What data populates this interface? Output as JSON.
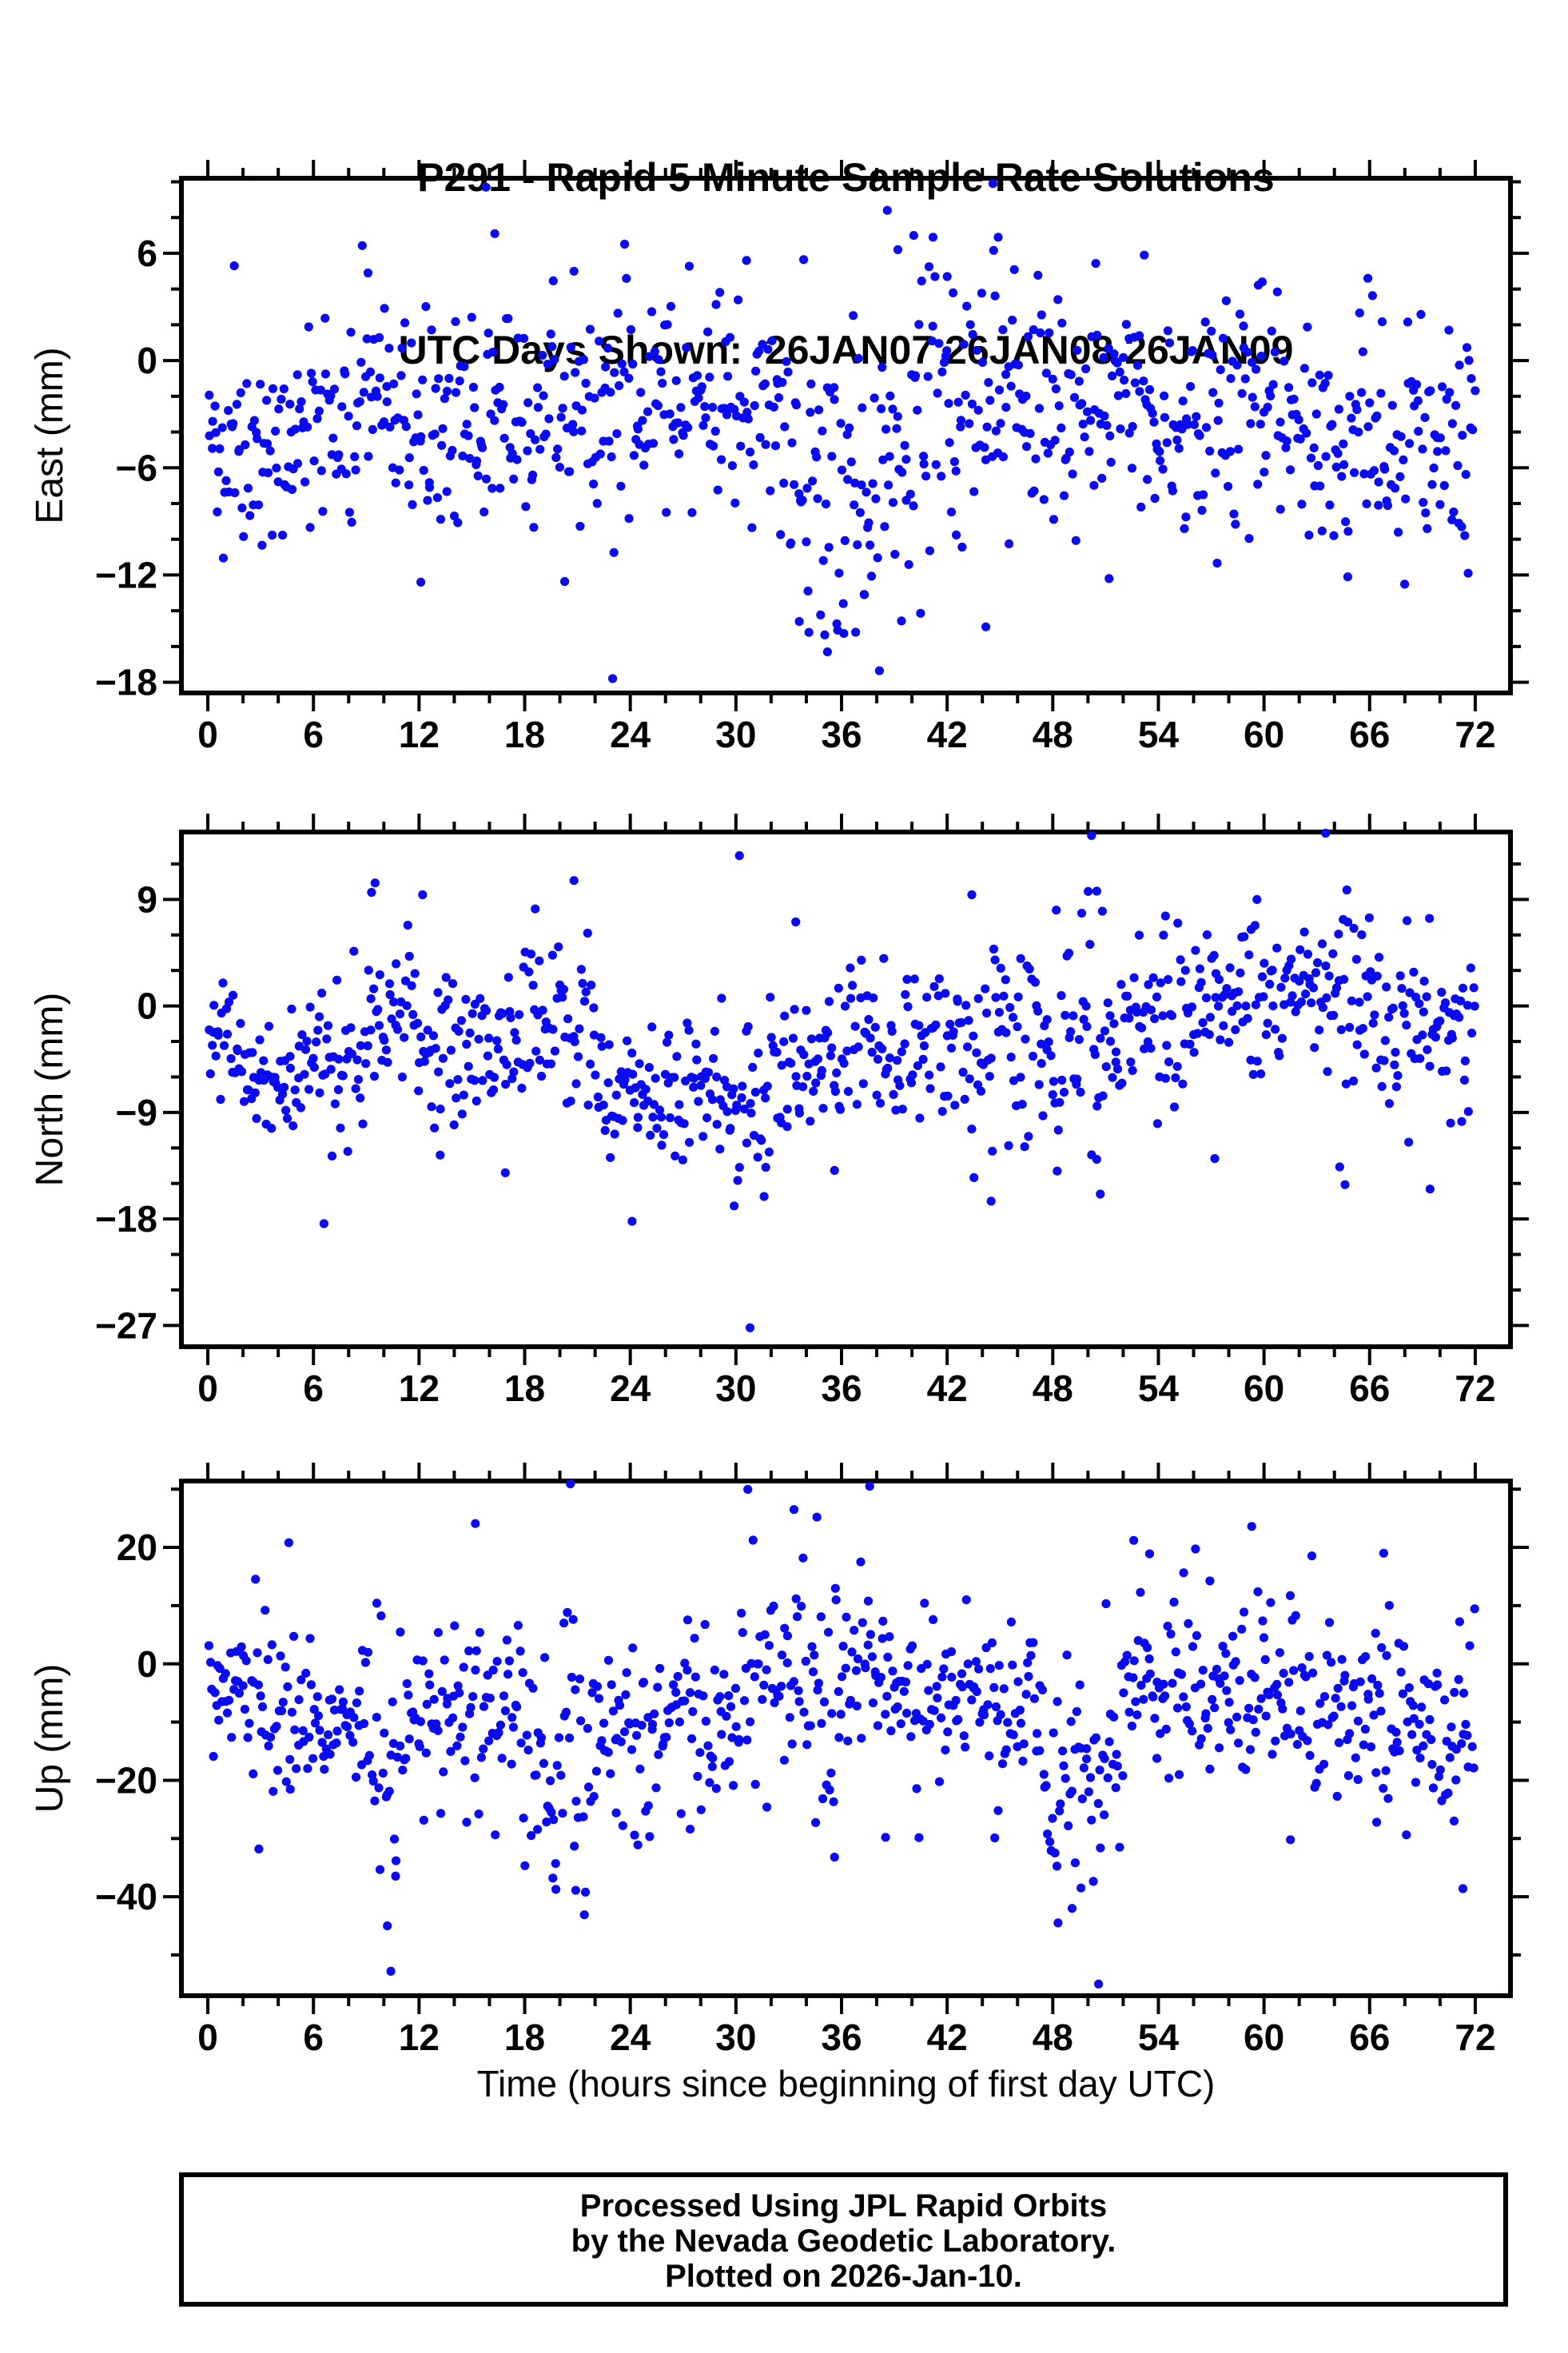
{
  "title": {
    "line1": "P291 - Rapid 5 Minute Sample Rate Solutions",
    "line2": "UTC Days Shown:  26JAN07 26JAN08 26JAN09"
  },
  "xaxis": {
    "label": "Time (hours since beginning of first day UTC)",
    "min": -1.5,
    "max": 74,
    "major_ticks": [
      0,
      6,
      12,
      18,
      24,
      30,
      36,
      42,
      48,
      54,
      60,
      66,
      72
    ],
    "minor_step": 2
  },
  "footer": {
    "line1": "Processed Using JPL Rapid Orbits",
    "line2": "by the Nevada Geodetic Laboratory.",
    "line3": "Plotted on 2026-Jan-10."
  },
  "style": {
    "dot_color": "#0b0bef",
    "frame_color": "#000000",
    "dot_radius": 5.6
  },
  "sampling": {
    "points_per_hour": 12,
    "t_min": 0.05,
    "t_max": 72,
    "seed": 20260110,
    "note": "Each panel shows ~864 rapid 5-minute GPS position solutions over 72 hours. Points are reproduced statistically: generated from band_profile segments [t_start_hr, t_end_hr, mean_mm, std_mm] plus the explicit outliers [t_hr, value_mm] listed, using the seeded PRNG in the page script."
  },
  "chart_data": [
    {
      "type": "scatter",
      "ylabel": "East (mm)",
      "ymin": -18.6,
      "ymax": 10.2,
      "yticks": [
        6,
        0,
        -6,
        -12,
        -18
      ],
      "yminor": 2,
      "band_profile": [
        [
          0,
          2,
          -5.5,
          2.6
        ],
        [
          2,
          5,
          -4.5,
          3.0
        ],
        [
          5,
          8,
          -3.2,
          2.8
        ],
        [
          8,
          12,
          -3.0,
          3.0
        ],
        [
          12,
          16,
          -4.0,
          3.2
        ],
        [
          16,
          20,
          -2.8,
          3.4
        ],
        [
          20,
          24,
          -3.0,
          3.4
        ],
        [
          24,
          28,
          -2.6,
          2.8
        ],
        [
          28,
          33,
          -2.4,
          2.9
        ],
        [
          33,
          36,
          -7.0,
          4.4
        ],
        [
          36,
          40,
          -6.0,
          4.8
        ],
        [
          40,
          43,
          -1.8,
          4.4
        ],
        [
          43,
          46,
          -2.2,
          4.0
        ],
        [
          46,
          50,
          -3.2,
          3.4
        ],
        [
          50,
          54,
          -3.0,
          3.3
        ],
        [
          54,
          58,
          -3.4,
          3.0
        ],
        [
          58,
          62,
          -3.4,
          3.0
        ],
        [
          62,
          66,
          -4.4,
          3.0
        ],
        [
          66,
          70,
          -4.0,
          3.0
        ],
        [
          70,
          72.1,
          -4.2,
          3.4
        ]
      ],
      "outliers": [
        [
          1.5,
          5.3
        ],
        [
          9.1,
          4.9
        ],
        [
          12.1,
          -12.4
        ],
        [
          15.8,
          9.7
        ],
        [
          16.3,
          7.1
        ],
        [
          20.8,
          5.0
        ],
        [
          23.0,
          -17.8
        ],
        [
          30.6,
          5.6
        ],
        [
          33.6,
          -14.6
        ],
        [
          34.1,
          -12.9
        ],
        [
          35.2,
          -16.3
        ],
        [
          36.1,
          -13.6
        ],
        [
          36.8,
          -15.2
        ],
        [
          37.3,
          -13.1
        ],
        [
          38.6,
          8.4
        ],
        [
          39.2,
          6.2
        ],
        [
          40.1,
          7.0
        ],
        [
          41.2,
          6.9
        ],
        [
          42.0,
          4.7
        ],
        [
          44.2,
          -14.9
        ],
        [
          44.6,
          9.9
        ],
        [
          44.9,
          6.9
        ],
        [
          51.2,
          -12.2
        ],
        [
          53.2,
          5.9
        ],
        [
          59.9,
          4.4
        ],
        [
          65.9,
          4.6
        ],
        [
          71.6,
          -11.9
        ]
      ]
    },
    {
      "type": "scatter",
      "ylabel": "North (mm)",
      "ymin": -28.8,
      "ymax": 14.7,
      "yticks": [
        9,
        0,
        -9,
        -18,
        -27
      ],
      "yminor": 3,
      "band_profile": [
        [
          0,
          2,
          -3.0,
          3.0
        ],
        [
          2,
          6,
          -6.0,
          3.2
        ],
        [
          6,
          9,
          -4.5,
          3.5
        ],
        [
          9,
          12,
          -1.0,
          3.3
        ],
        [
          12,
          17,
          -3.5,
          3.0
        ],
        [
          17,
          22,
          -1.5,
          3.4
        ],
        [
          22,
          25,
          -6.5,
          3.2
        ],
        [
          25,
          30,
          -7.0,
          3.0
        ],
        [
          30,
          33,
          -7.5,
          3.4
        ],
        [
          33,
          38,
          -4.0,
          3.0
        ],
        [
          38,
          43,
          -3.5,
          3.4
        ],
        [
          43,
          47,
          -4.0,
          4.6
        ],
        [
          47,
          52,
          -2.5,
          5.0
        ],
        [
          52,
          58,
          -0.5,
          3.4
        ],
        [
          58,
          63,
          0.5,
          3.0
        ],
        [
          63,
          66,
          0.0,
          4.0
        ],
        [
          66,
          72.1,
          -1.0,
          3.4
        ]
      ],
      "outliers": [
        [
          6.6,
          -18.4
        ],
        [
          9.3,
          9.6
        ],
        [
          9.5,
          10.4
        ],
        [
          12.2,
          9.4
        ],
        [
          13.2,
          -12.6
        ],
        [
          16.9,
          -14.1
        ],
        [
          18.6,
          8.2
        ],
        [
          20.8,
          10.6
        ],
        [
          24.1,
          -18.2
        ],
        [
          29.9,
          -16.9
        ],
        [
          30.2,
          12.7
        ],
        [
          30.8,
          -27.2
        ],
        [
          31.6,
          -16.1
        ],
        [
          33.4,
          7.1
        ],
        [
          35.6,
          -13.9
        ],
        [
          43.4,
          9.4
        ],
        [
          44.5,
          -16.5
        ],
        [
          48.2,
          8.1
        ],
        [
          50.2,
          14.4
        ],
        [
          50.5,
          9.7
        ],
        [
          50.7,
          -15.9
        ],
        [
          54.4,
          7.6
        ],
        [
          57.2,
          -12.9
        ],
        [
          59.6,
          9.0
        ],
        [
          63.5,
          14.6
        ],
        [
          64.3,
          -13.6
        ],
        [
          64.6,
          -15.1
        ],
        [
          69.4,
          7.4
        ],
        [
          70.6,
          -9.9
        ]
      ]
    },
    {
      "type": "scatter",
      "ylabel": "Up (mm)",
      "ymin": -57,
      "ymax": 31.4,
      "yticks": [
        20,
        0,
        -20,
        -40
      ],
      "yminor": 10,
      "band_profile": [
        [
          0,
          3,
          -3,
          7
        ],
        [
          3,
          5,
          -8,
          9
        ],
        [
          5,
          9,
          -10,
          7
        ],
        [
          9,
          11,
          -17,
          12
        ],
        [
          11,
          14,
          -8,
          8
        ],
        [
          14,
          18,
          -9,
          9
        ],
        [
          18,
          22,
          -14,
          11
        ],
        [
          22,
          26,
          -13,
          8
        ],
        [
          26,
          30,
          -11,
          8
        ],
        [
          30,
          34,
          -2,
          9
        ],
        [
          34,
          36,
          -6,
          10
        ],
        [
          36,
          40,
          -2,
          8
        ],
        [
          40,
          44,
          -6,
          8
        ],
        [
          44,
          47,
          -9,
          8
        ],
        [
          47,
          52,
          -21,
          10
        ],
        [
          52,
          56,
          -4,
          8
        ],
        [
          56,
          60,
          -3,
          8
        ],
        [
          60,
          64,
          -7,
          8
        ],
        [
          64,
          68,
          -9,
          7
        ],
        [
          68,
          72.1,
          -9,
          9
        ]
      ],
      "outliers": [
        [
          2.9,
          -31.8
        ],
        [
          4.6,
          20.8
        ],
        [
          10.2,
          -45.0
        ],
        [
          10.4,
          -52.8
        ],
        [
          10.6,
          -30.1
        ],
        [
          15.2,
          24.1
        ],
        [
          19.6,
          -36.8
        ],
        [
          20.6,
          30.9
        ],
        [
          20.9,
          -38.9
        ],
        [
          23.2,
          -25.6
        ],
        [
          27.4,
          -28.4
        ],
        [
          33.3,
          26.5
        ],
        [
          34.6,
          25.2
        ],
        [
          35.6,
          -33.2
        ],
        [
          37.6,
          30.5
        ],
        [
          38.5,
          -29.8
        ],
        [
          44.9,
          -25.2
        ],
        [
          48.3,
          -44.5
        ],
        [
          49.1,
          -42.0
        ],
        [
          49.6,
          -38.5
        ],
        [
          50.6,
          -55.0
        ],
        [
          52.6,
          21.2
        ],
        [
          53.5,
          18.9
        ],
        [
          59.3,
          23.6
        ],
        [
          61.5,
          -30.2
        ],
        [
          66.4,
          -27.2
        ],
        [
          66.8,
          19.0
        ],
        [
          70.8,
          -27.0
        ],
        [
          71.3,
          -38.6
        ]
      ]
    }
  ]
}
